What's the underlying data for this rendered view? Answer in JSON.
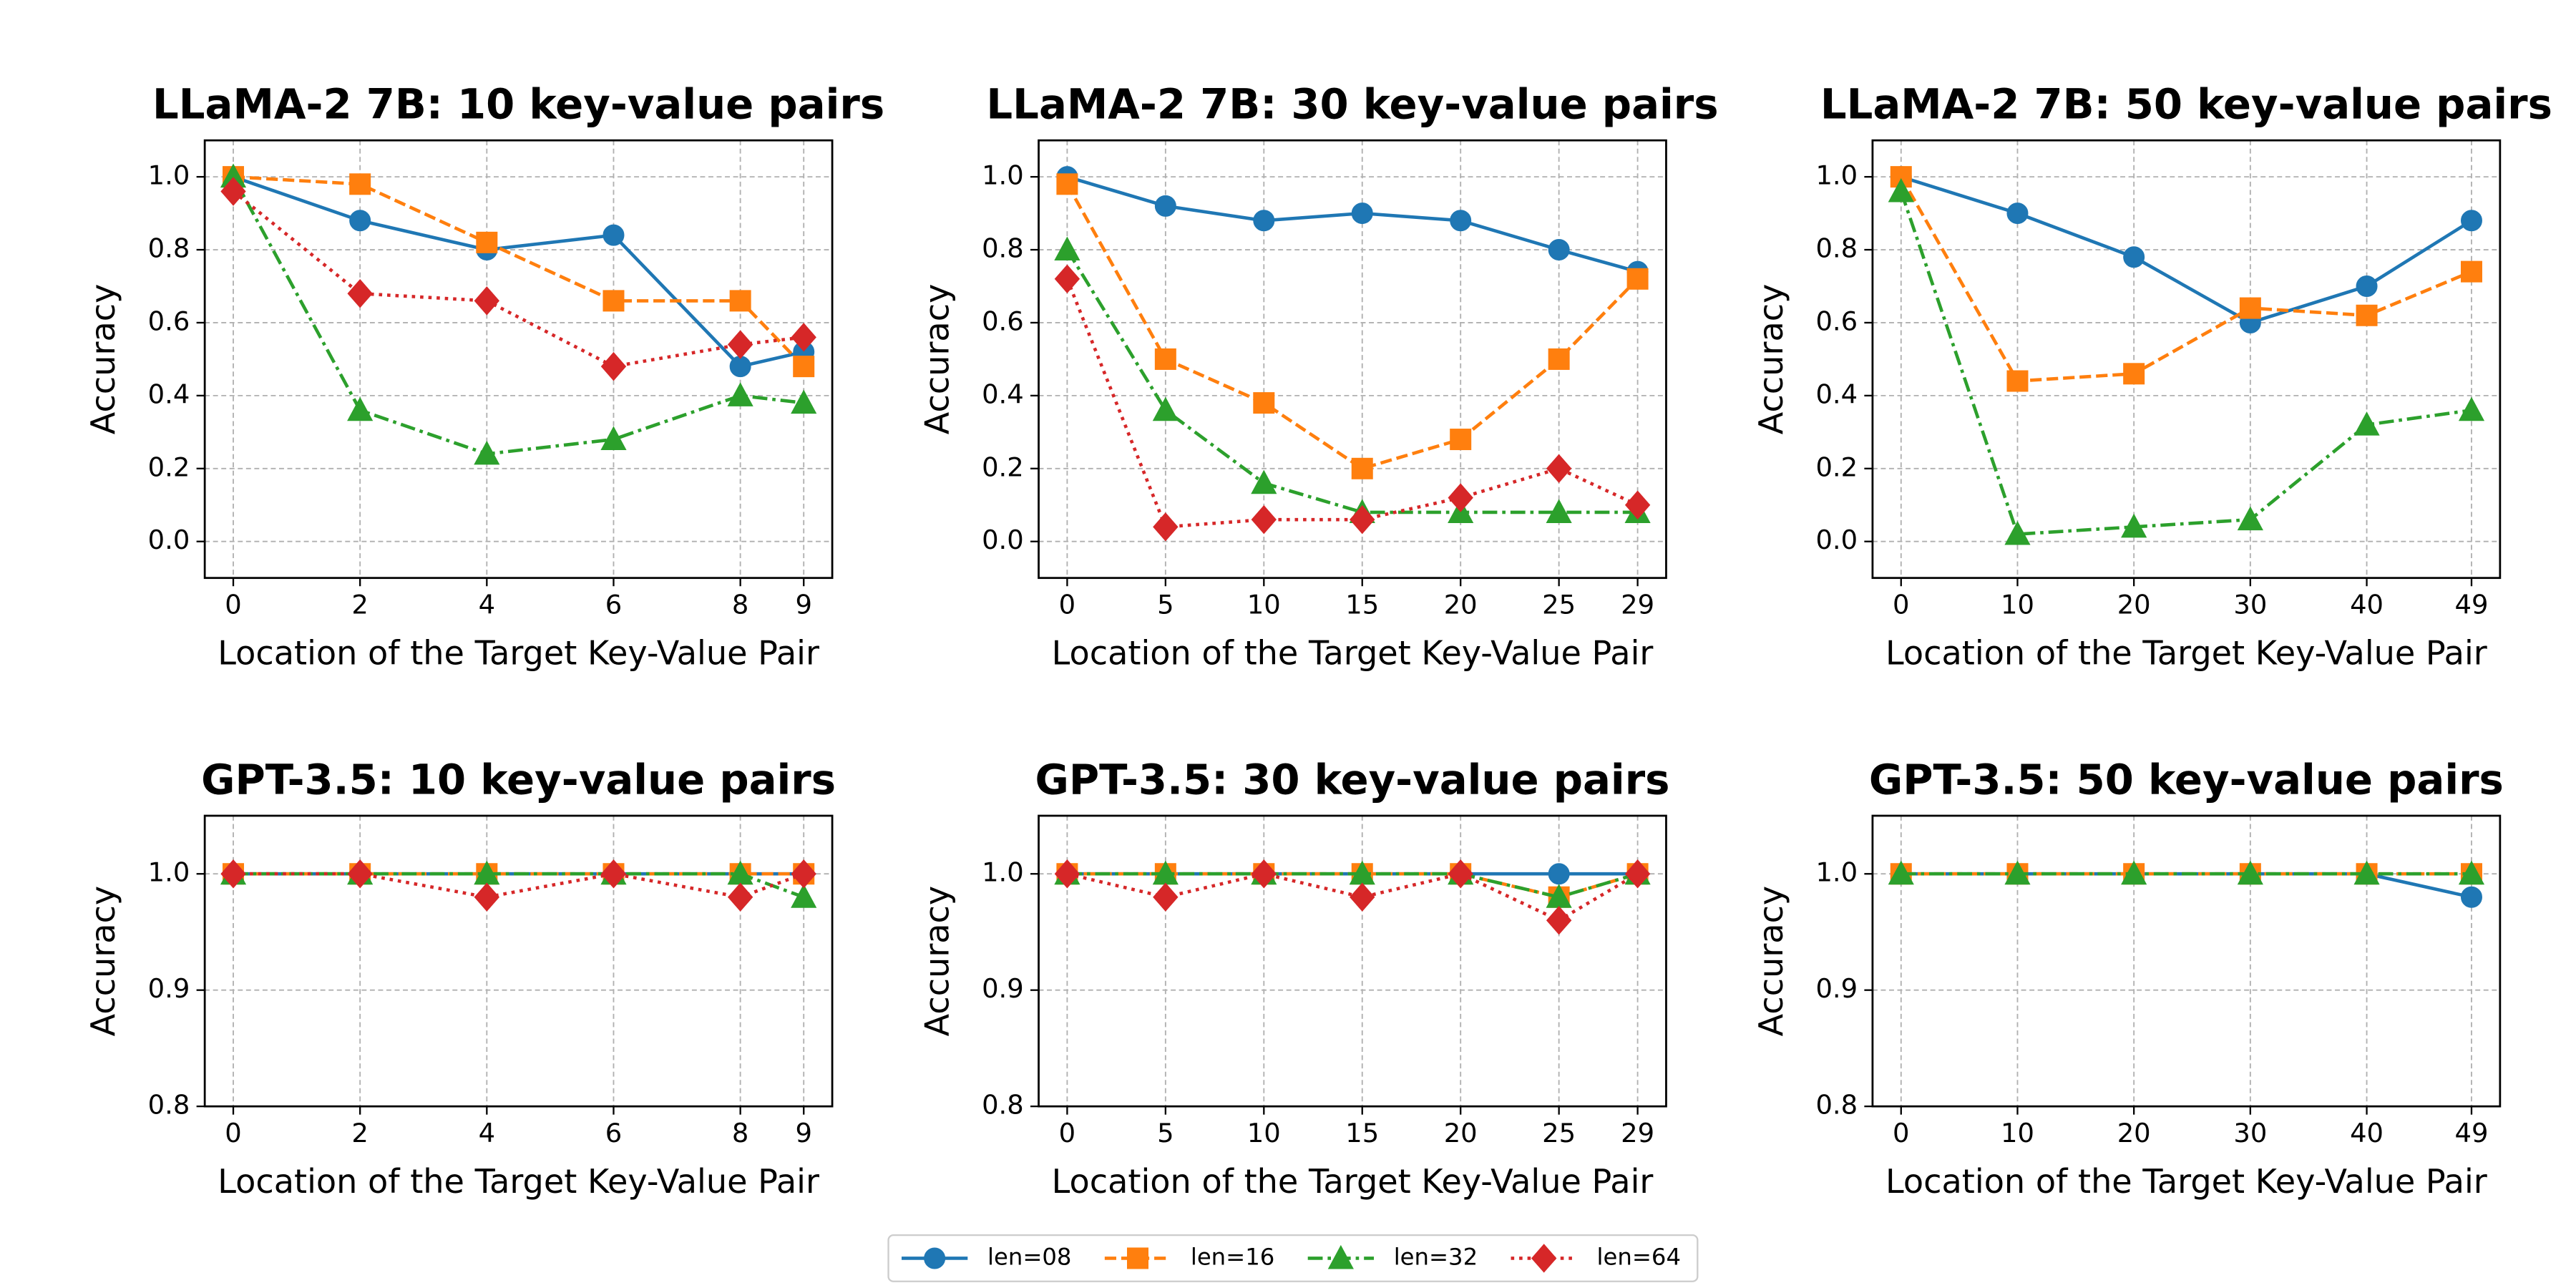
{
  "chart_data": [
    {
      "type": "line",
      "title": "LLaMA-2 7B: 10 key-value pairs",
      "xlabel": "Location of the Target Key-Value Pair",
      "ylabel": "Accuracy",
      "x": [
        0,
        2,
        4,
        6,
        8,
        9
      ],
      "xlim": [
        -0.45,
        9.45
      ],
      "xticks": [
        0,
        2,
        4,
        6,
        8,
        9
      ],
      "ylim": [
        -0.1,
        1.1
      ],
      "yticks": [
        {
          "value": 0,
          "label": "0.0"
        },
        {
          "value": 0.2,
          "label": "0.2"
        },
        {
          "value": 0.4,
          "label": "0.4"
        },
        {
          "value": 0.6,
          "label": "0.6"
        },
        {
          "value": 0.8,
          "label": "0.8"
        },
        {
          "value": 1,
          "label": "1.0"
        }
      ],
      "grid": true,
      "series": [
        {
          "name": "len=08",
          "color": "#1f77b4",
          "marker": "circle",
          "linestyle": "solid",
          "values": [
            1.0,
            0.88,
            0.8,
            0.84,
            0.48,
            0.52
          ]
        },
        {
          "name": "len=16",
          "color": "#ff7f0e",
          "marker": "square",
          "linestyle": "dashed",
          "values": [
            1.0,
            0.98,
            0.82,
            0.66,
            0.66,
            0.48
          ]
        },
        {
          "name": "len=32",
          "color": "#2ca02c",
          "marker": "triangle",
          "linestyle": "dashdot",
          "values": [
            1.0,
            0.36,
            0.24,
            0.28,
            0.4,
            0.38
          ]
        },
        {
          "name": "len=64",
          "color": "#d62728",
          "marker": "diamond",
          "linestyle": "dotted",
          "values": [
            0.96,
            0.68,
            0.66,
            0.48,
            0.54,
            0.56
          ]
        }
      ]
    },
    {
      "type": "line",
      "title": "LLaMA-2 7B: 30 key-value pairs",
      "xlabel": "Location of the Target Key-Value Pair",
      "ylabel": "Accuracy",
      "x": [
        0,
        5,
        10,
        15,
        20,
        25,
        29
      ],
      "xlim": [
        -1.45,
        30.45
      ],
      "xticks": [
        0,
        5,
        10,
        15,
        20,
        25,
        29
      ],
      "ylim": [
        -0.1,
        1.1
      ],
      "yticks": [
        {
          "value": 0,
          "label": "0.0"
        },
        {
          "value": 0.2,
          "label": "0.2"
        },
        {
          "value": 0.4,
          "label": "0.4"
        },
        {
          "value": 0.6,
          "label": "0.6"
        },
        {
          "value": 0.8,
          "label": "0.8"
        },
        {
          "value": 1,
          "label": "1.0"
        }
      ],
      "grid": true,
      "series": [
        {
          "name": "len=08",
          "color": "#1f77b4",
          "marker": "circle",
          "linestyle": "solid",
          "values": [
            1.0,
            0.92,
            0.88,
            0.9,
            0.88,
            0.8,
            0.74
          ]
        },
        {
          "name": "len=16",
          "color": "#ff7f0e",
          "marker": "square",
          "linestyle": "dashed",
          "values": [
            0.98,
            0.5,
            0.38,
            0.2,
            0.28,
            0.5,
            0.72
          ]
        },
        {
          "name": "len=32",
          "color": "#2ca02c",
          "marker": "triangle",
          "linestyle": "dashdot",
          "values": [
            0.8,
            0.36,
            0.16,
            0.08,
            0.08,
            0.08,
            0.08
          ]
        },
        {
          "name": "len=64",
          "color": "#d62728",
          "marker": "diamond",
          "linestyle": "dotted",
          "values": [
            0.72,
            0.04,
            0.06,
            0.06,
            0.12,
            0.2,
            0.1
          ]
        }
      ]
    },
    {
      "type": "line",
      "title": "LLaMA-2 7B: 50 key-value pairs",
      "xlabel": "Location of the Target Key-Value Pair",
      "ylabel": "Accuracy",
      "x": [
        0,
        10,
        20,
        30,
        40,
        49
      ],
      "xlim": [
        -2.45,
        51.45
      ],
      "xticks": [
        0,
        10,
        20,
        30,
        40,
        49
      ],
      "ylim": [
        -0.1,
        1.1
      ],
      "yticks": [
        {
          "value": 0,
          "label": "0.0"
        },
        {
          "value": 0.2,
          "label": "0.2"
        },
        {
          "value": 0.4,
          "label": "0.4"
        },
        {
          "value": 0.6,
          "label": "0.6"
        },
        {
          "value": 0.8,
          "label": "0.8"
        },
        {
          "value": 1,
          "label": "1.0"
        }
      ],
      "grid": true,
      "series": [
        {
          "name": "len=08",
          "color": "#1f77b4",
          "marker": "circle",
          "linestyle": "solid",
          "values": [
            1.0,
            0.9,
            0.78,
            0.6,
            0.7,
            0.88
          ]
        },
        {
          "name": "len=16",
          "color": "#ff7f0e",
          "marker": "square",
          "linestyle": "dashed",
          "values": [
            1.0,
            0.44,
            0.46,
            0.64,
            0.62,
            0.74
          ]
        },
        {
          "name": "len=32",
          "color": "#2ca02c",
          "marker": "triangle",
          "linestyle": "dashdot",
          "values": [
            0.96,
            0.02,
            0.04,
            0.06,
            0.32,
            0.36
          ]
        }
      ]
    },
    {
      "type": "line",
      "title": "GPT-3.5: 10 key-value pairs",
      "xlabel": "Location of the Target Key-Value Pair",
      "ylabel": "Accuracy",
      "x": [
        0,
        2,
        4,
        6,
        8,
        9
      ],
      "xlim": [
        -0.45,
        9.45
      ],
      "xticks": [
        0,
        2,
        4,
        6,
        8,
        9
      ],
      "ylim": [
        0.8,
        1.05
      ],
      "yticks": [
        {
          "value": 0.8,
          "label": "0.8"
        },
        {
          "value": 0.9,
          "label": "0.9"
        },
        {
          "value": 1,
          "label": "1.0"
        }
      ],
      "grid": true,
      "series": [
        {
          "name": "len=08",
          "color": "#1f77b4",
          "marker": "circle",
          "linestyle": "solid",
          "values": [
            1,
            1,
            1,
            1,
            1,
            1
          ]
        },
        {
          "name": "len=16",
          "color": "#ff7f0e",
          "marker": "square",
          "linestyle": "dashed",
          "values": [
            1,
            1,
            1,
            1,
            1,
            1
          ]
        },
        {
          "name": "len=32",
          "color": "#2ca02c",
          "marker": "triangle",
          "linestyle": "dashdot",
          "values": [
            1,
            1,
            1,
            1,
            1,
            0.98
          ]
        },
        {
          "name": "len=64",
          "color": "#d62728",
          "marker": "diamond",
          "linestyle": "dotted",
          "values": [
            1,
            1,
            0.98,
            1,
            0.98,
            1
          ]
        }
      ]
    },
    {
      "type": "line",
      "title": "GPT-3.5: 30 key-value pairs",
      "xlabel": "Location of the Target Key-Value Pair",
      "ylabel": "Accuracy",
      "x": [
        0,
        5,
        10,
        15,
        20,
        25,
        29
      ],
      "xlim": [
        -1.45,
        30.45
      ],
      "xticks": [
        0,
        5,
        10,
        15,
        20,
        25,
        29
      ],
      "ylim": [
        0.8,
        1.05
      ],
      "yticks": [
        {
          "value": 0.8,
          "label": "0.8"
        },
        {
          "value": 0.9,
          "label": "0.9"
        },
        {
          "value": 1,
          "label": "1.0"
        }
      ],
      "grid": true,
      "series": [
        {
          "name": "len=08",
          "color": "#1f77b4",
          "marker": "circle",
          "linestyle": "solid",
          "values": [
            1,
            1,
            1,
            1,
            1,
            1,
            1
          ]
        },
        {
          "name": "len=16",
          "color": "#ff7f0e",
          "marker": "square",
          "linestyle": "dashed",
          "values": [
            1,
            1,
            1,
            1,
            1,
            0.98,
            1
          ]
        },
        {
          "name": "len=32",
          "color": "#2ca02c",
          "marker": "triangle",
          "linestyle": "dashdot",
          "values": [
            1,
            1,
            1,
            1,
            1,
            0.98,
            1
          ]
        },
        {
          "name": "len=64",
          "color": "#d62728",
          "marker": "diamond",
          "linestyle": "dotted",
          "values": [
            1,
            0.98,
            1,
            0.98,
            1,
            0.96,
            1
          ]
        }
      ]
    },
    {
      "type": "line",
      "title": "GPT-3.5: 50 key-value pairs",
      "xlabel": "Location of the Target Key-Value Pair",
      "ylabel": "Accuracy",
      "x": [
        0,
        10,
        20,
        30,
        40,
        49
      ],
      "xlim": [
        -2.45,
        51.45
      ],
      "xticks": [
        0,
        10,
        20,
        30,
        40,
        49
      ],
      "ylim": [
        0.8,
        1.05
      ],
      "yticks": [
        {
          "value": 0.8,
          "label": "0.8"
        },
        {
          "value": 0.9,
          "label": "0.9"
        },
        {
          "value": 1,
          "label": "1.0"
        }
      ],
      "grid": true,
      "series": [
        {
          "name": "len=08",
          "color": "#1f77b4",
          "marker": "circle",
          "linestyle": "solid",
          "values": [
            1,
            1,
            1,
            1,
            1,
            0.98
          ]
        },
        {
          "name": "len=16",
          "color": "#ff7f0e",
          "marker": "square",
          "linestyle": "dashed",
          "values": [
            1,
            1,
            1,
            1,
            1,
            1
          ]
        },
        {
          "name": "len=32",
          "color": "#2ca02c",
          "marker": "triangle",
          "linestyle": "dashdot",
          "values": [
            1,
            1,
            1,
            1,
            1,
            1
          ]
        }
      ]
    }
  ]
}
